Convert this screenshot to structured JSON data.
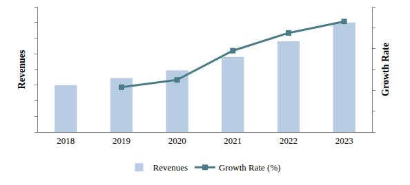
{
  "chart_data": {
    "type": "bar",
    "categories": [
      "2018",
      "2019",
      "2020",
      "2021",
      "2022",
      "2023"
    ],
    "y_label": "Revenues",
    "y2_label": "Growth Rate",
    "series": [
      {
        "name": "Revenues",
        "type": "bar",
        "color": "#b8cce4",
        "values": [
          3.0,
          3.45,
          3.95,
          4.8,
          5.8,
          7.0
        ]
      },
      {
        "name": "Growth Rate (%)",
        "type": "line",
        "axis": "y2",
        "color": "#4a7b87",
        "marker": "square",
        "line_style": "solid",
        "values": [
          null,
          2.15,
          2.5,
          3.9,
          4.75,
          5.3
        ]
      }
    ],
    "ylim": [
      0,
      8
    ],
    "yticks": [
      0,
      1,
      2,
      3,
      4,
      5,
      6,
      7,
      8
    ],
    "y2lim": [
      0,
      6
    ],
    "y2ticks": [
      0,
      1,
      2,
      3,
      4,
      5,
      6
    ],
    "tick_labels": "x",
    "grid": false,
    "legend": "bottom"
  }
}
